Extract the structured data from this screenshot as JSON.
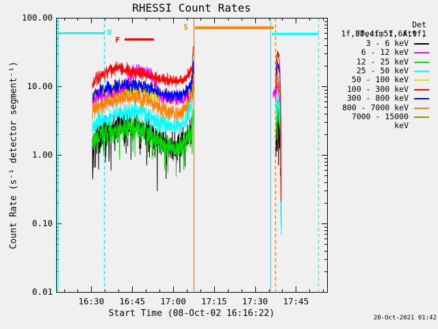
{
  "title": "RHESSI Count Rates",
  "timestamp": "20-Oct-2021 01:42",
  "chart_data": {
    "type": "line",
    "title": "RHESSI Count Rates",
    "xlabel": "Start Time (08-Oct-02 16:16:22)",
    "ylabel": "Count Rate (s⁻¹ detector segment⁻¹)",
    "x_axis": {
      "unit": "minutes after 16:00",
      "t0": 17.1,
      "t1": 116.43,
      "major_ticks": [
        {
          "t": 30,
          "label": "16:30"
        },
        {
          "t": 45,
          "label": "16:45"
        },
        {
          "t": 60,
          "label": "17:00"
        },
        {
          "t": 75,
          "label": "17:15"
        },
        {
          "t": 90,
          "label": "17:30"
        },
        {
          "t": 105,
          "label": "17:45"
        }
      ],
      "minor_step": 5
    },
    "y_axis": {
      "scale": "log",
      "min": 0.01,
      "max": 100,
      "grid": false,
      "major_ticks": [
        {
          "v": 100,
          "label": "100.00"
        },
        {
          "v": 10,
          "label": "10.00"
        },
        {
          "v": 1,
          "label": "1.00"
        },
        {
          "v": 0.1,
          "label": "0.10"
        },
        {
          "v": 0.01,
          "label": "0.01"
        }
      ]
    },
    "legend": {
      "position": "right",
      "header": [
        "Det 1f,3f,4f,5f,6f,9f,",
        "FDecim 1, Att 1"
      ]
    },
    "event_lines": [
      {
        "t": 17.6,
        "color": "#00ffff",
        "dash": false
      },
      {
        "t": 34.66,
        "color": "#00ffff",
        "dash": true
      },
      {
        "t": 67.52,
        "color": "#ff8000",
        "dash": false
      },
      {
        "t": 95.6,
        "color": "#00ffff",
        "dash": false
      },
      {
        "t": 97.35,
        "color": "#ff8000",
        "dash": true
      },
      {
        "t": 113.15,
        "color": "#00ffff",
        "dash": true
      }
    ],
    "flags": [
      {
        "label": "N",
        "color": "#00ffff",
        "t1": 17.6,
        "t2": 34.66,
        "v": 60,
        "lw": 3,
        "label_t": 36.8,
        "label_v": 61
      },
      {
        "label": "F",
        "color": "#ff0000",
        "t1": 42.2,
        "t2": 52.9,
        "v": 49,
        "lw": 3,
        "label_t": 39.8,
        "label_v": 48
      },
      {
        "label": "S",
        "color": "#ff8000",
        "t1": 68.0,
        "t2": 96.9,
        "v": 72,
        "lw": 4,
        "label_t": 64.8,
        "label_v": 74
      },
      {
        "label": "",
        "color": "#00ffff",
        "t1": 96.1,
        "t2": 113.15,
        "v": 59,
        "lw": 3,
        "label_t": 0,
        "label_v": 0
      }
    ],
    "series": [
      {
        "name": "3 - 6 keV",
        "color": "#000000",
        "sigma": 0.1,
        "spike_p": 0.05,
        "spike_m": 0.35,
        "a": [
          [
            30.4,
            1.6
          ],
          [
            30.5,
            0.32
          ],
          [
            30.72,
            1.5
          ],
          [
            32,
            1.9
          ],
          [
            36,
            2.3
          ],
          [
            42,
            2.6
          ],
          [
            47,
            2.7
          ],
          [
            51,
            2.2
          ],
          [
            55,
            1.5
          ],
          [
            59,
            1.3
          ],
          [
            63,
            1.4
          ],
          [
            65.5,
            1.9
          ],
          [
            66.9,
            2.6
          ],
          [
            67.3,
            22
          ],
          [
            67.45,
            26
          ]
        ],
        "b": [
          [
            97.65,
            1.2
          ],
          [
            97.85,
            2.2
          ],
          [
            98.2,
            2.9
          ],
          [
            98.7,
            2.6
          ],
          [
            99.2,
            1.9
          ],
          [
            99.42,
            0.4
          ],
          [
            99.65,
            0.055
          ]
        ]
      },
      {
        "name": "6 - 12 keV",
        "color": "#ff00ff",
        "sigma": 0.05,
        "spike_p": 0,
        "spike_m": 0,
        "a": [
          [
            30.4,
            6.0
          ],
          [
            32,
            6.8
          ],
          [
            36,
            7.4
          ],
          [
            41,
            8.5
          ],
          [
            43.5,
            12
          ],
          [
            45.5,
            16.5
          ],
          [
            47.5,
            17
          ],
          [
            49.5,
            16
          ],
          [
            51.5,
            15
          ],
          [
            52.8,
            13
          ],
          [
            54,
            9.5
          ],
          [
            55.5,
            7.2
          ],
          [
            58,
            6.6
          ],
          [
            61,
            6.4
          ],
          [
            64,
            6.6
          ],
          [
            66,
            7.2
          ],
          [
            67.1,
            9
          ],
          [
            67.45,
            13
          ]
        ],
        "b": [
          [
            96.6,
            7.5
          ],
          [
            97.3,
            8.2
          ],
          [
            97.8,
            8.8
          ],
          [
            98.2,
            9.8
          ],
          [
            98.8,
            8.6
          ],
          [
            99.2,
            5.5
          ],
          [
            99.5,
            1.4
          ]
        ]
      },
      {
        "name": "12 - 25 keV",
        "color": "#00dd00",
        "sigma": 0.085,
        "spike_p": 0.04,
        "spike_m": 0.25,
        "a": [
          [
            30.4,
            1.5
          ],
          [
            31,
            1.7
          ],
          [
            34,
            2.0
          ],
          [
            40,
            2.4
          ],
          [
            46,
            2.6
          ],
          [
            50,
            2.3
          ],
          [
            54,
            1.6
          ],
          [
            58,
            1.35
          ],
          [
            62,
            1.3
          ],
          [
            65,
            1.7
          ],
          [
            66.9,
            2.5
          ],
          [
            67.4,
            5.5
          ]
        ],
        "b": [
          [
            97.65,
            2.2
          ],
          [
            98.2,
            4.2
          ],
          [
            98.8,
            3.6
          ],
          [
            99.2,
            2.6
          ],
          [
            99.5,
            1.3
          ]
        ]
      },
      {
        "name": "25 - 50 keV",
        "color": "#00ffff",
        "sigma": 0.07,
        "spike_p": 0.02,
        "spike_m": 0.2,
        "a": [
          [
            30.4,
            2.4
          ],
          [
            32,
            3.0
          ],
          [
            36,
            3.6
          ],
          [
            42,
            4.2
          ],
          [
            47,
            4.3
          ],
          [
            51,
            3.7
          ],
          [
            55,
            2.9
          ],
          [
            59,
            2.6
          ],
          [
            63,
            2.7
          ],
          [
            65.5,
            3.6
          ],
          [
            66.6,
            6.0
          ],
          [
            67.0,
            8.5
          ],
          [
            67.18,
            1.0
          ]
        ],
        "b": [
          [
            97.65,
            3.8
          ],
          [
            98.2,
            6.2
          ],
          [
            98.8,
            5.4
          ],
          [
            99.2,
            3.6
          ],
          [
            99.45,
            0.8
          ],
          [
            99.62,
            0.078
          ]
        ]
      },
      {
        "name": "50 - 100 keV",
        "color": "#e0e000",
        "sigma": 0.05,
        "spike_p": 0,
        "spike_m": 0,
        "a": [
          [
            30.4,
            6.8
          ],
          [
            33,
            7.6
          ],
          [
            38,
            8.6
          ],
          [
            44,
            9.2
          ],
          [
            48,
            8.8
          ],
          [
            52,
            7.8
          ],
          [
            56,
            6.8
          ],
          [
            60,
            6.4
          ],
          [
            63,
            6.6
          ],
          [
            65.5,
            7.4
          ],
          [
            67.0,
            9.5
          ],
          [
            67.45,
            13
          ]
        ],
        "b": [
          [
            97.65,
            8.0
          ],
          [
            98.2,
            10.5
          ],
          [
            98.8,
            9.5
          ],
          [
            99.2,
            6.5
          ],
          [
            99.45,
            1.2
          ],
          [
            99.58,
            0.29
          ]
        ]
      },
      {
        "name": "100 - 300 keV",
        "color": "#ff0000",
        "sigma": 0.045,
        "spike_p": 0,
        "spike_m": 0,
        "a": [
          [
            30.4,
            10.5
          ],
          [
            31.5,
            12.5
          ],
          [
            34,
            15
          ],
          [
            37,
            17.5
          ],
          [
            40,
            18.5
          ],
          [
            43,
            17
          ],
          [
            46,
            16
          ],
          [
            49,
            15.5
          ],
          [
            52,
            14
          ],
          [
            55,
            12.8
          ],
          [
            58,
            12.2
          ],
          [
            61,
            12.2
          ],
          [
            63.5,
            12.6
          ],
          [
            65.5,
            14.5
          ],
          [
            66.9,
            20
          ],
          [
            67.45,
            38
          ]
        ],
        "b": [
          [
            97.62,
            12
          ],
          [
            97.8,
            24
          ],
          [
            98.2,
            30
          ],
          [
            98.8,
            26
          ],
          [
            99.2,
            15
          ],
          [
            99.45,
            2.5
          ],
          [
            99.58,
            0.2
          ]
        ]
      },
      {
        "name": "300 - 800 keV",
        "color": "#0000ff",
        "sigma": 0.05,
        "spike_p": 0,
        "spike_m": 0,
        "a": [
          [
            30.4,
            7.4
          ],
          [
            32,
            8.4
          ],
          [
            36,
            9.4
          ],
          [
            42,
            10.6
          ],
          [
            47,
            10.8
          ],
          [
            51,
            9.6
          ],
          [
            55,
            8.0
          ],
          [
            59,
            7.2
          ],
          [
            63,
            7.4
          ],
          [
            65.5,
            8.6
          ],
          [
            66.9,
            12
          ],
          [
            67.45,
            23
          ]
        ],
        "b": [
          [
            97.62,
            9
          ],
          [
            97.8,
            16
          ],
          [
            98.2,
            21
          ],
          [
            98.8,
            18
          ],
          [
            99.2,
            11
          ],
          [
            99.45,
            3
          ],
          [
            99.52,
            1.35
          ]
        ]
      },
      {
        "name": "800 - 7000 keV",
        "color": "#ff8000",
        "sigma": 0.06,
        "spike_p": 0,
        "spike_m": 0,
        "a": [
          [
            30.4,
            4.4
          ],
          [
            32,
            5.0
          ],
          [
            36,
            5.8
          ],
          [
            42,
            6.6
          ],
          [
            47,
            6.8
          ],
          [
            51,
            6.0
          ],
          [
            55,
            4.6
          ],
          [
            59,
            4.0
          ],
          [
            63,
            4.2
          ],
          [
            65.5,
            5.2
          ],
          [
            66.9,
            8.0
          ],
          [
            67.45,
            14
          ]
        ],
        "b": [
          [
            97.62,
            6
          ],
          [
            97.9,
            11
          ],
          [
            98.2,
            12.5
          ],
          [
            98.8,
            11
          ],
          [
            99.2,
            7
          ],
          [
            99.45,
            1.5
          ],
          [
            99.6,
            0.25
          ]
        ]
      },
      {
        "name": "7000 - 15000 keV",
        "color": "#8f8f00",
        "sigma": 0.05,
        "spike_p": 0,
        "spike_m": 0,
        "a": [
          [
            30.4,
            7.2
          ],
          [
            34,
            7.8
          ],
          [
            40,
            8.6
          ],
          [
            46,
            8.8
          ],
          [
            50,
            8.2
          ],
          [
            54,
            7.4
          ],
          [
            58,
            7.0
          ],
          [
            62,
            7.0
          ],
          [
            65,
            7.4
          ],
          [
            67.0,
            8.4
          ],
          [
            67.45,
            9.5
          ]
        ],
        "b": [
          [
            97.65,
            8.5
          ],
          [
            98.2,
            9.8
          ],
          [
            98.8,
            9.0
          ],
          [
            99.2,
            7.0
          ],
          [
            99.4,
            2.5
          ],
          [
            99.5,
            1.6
          ]
        ]
      }
    ],
    "draw_order": [
      8,
      4,
      1,
      0,
      2,
      3,
      7,
      6,
      5
    ]
  }
}
